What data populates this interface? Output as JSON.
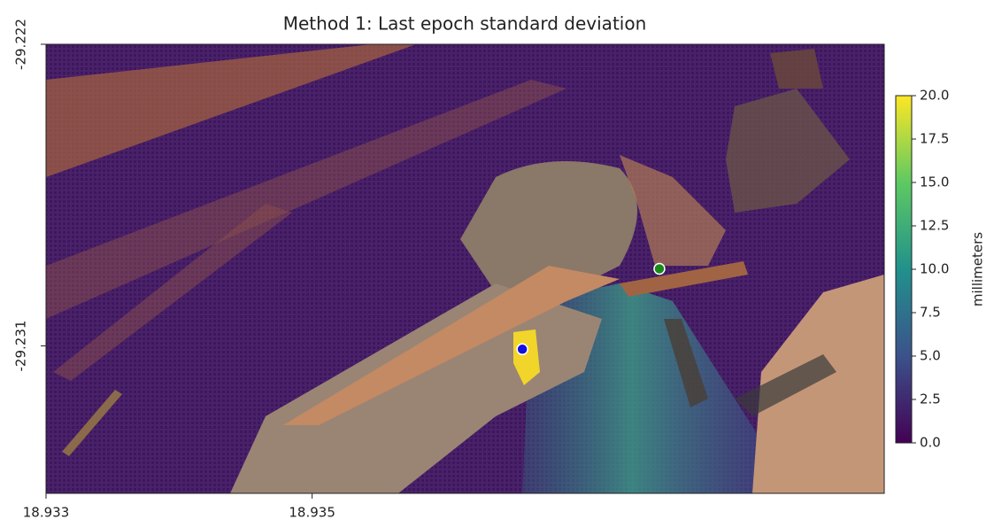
{
  "chart_data": {
    "type": "scatter",
    "title": "Method 1: Last epoch standard deviation",
    "xlim": [
      18.933,
      18.9393
    ],
    "xticks": [
      18.933,
      18.935
    ],
    "ylim": [
      -29.2354,
      -29.222
    ],
    "yticks": [
      -29.222,
      -29.231
    ],
    "series": [
      {
        "color": "#1a8a1a",
        "x": [
          18.93761
        ],
        "y": [
          -29.2287
        ]
      },
      {
        "color": "#1010e0",
        "x": [
          18.93658
        ],
        "y": [
          -29.2311
        ]
      }
    ],
    "colorbar": {
      "label": "millimeters",
      "lim": [
        0,
        20
      ],
      "colors": [
        "#440154",
        "#3b528b",
        "#21918c",
        "#5ec962",
        "#fde725"
      ],
      "ticks": [
        {
          "value": 0,
          "label": "0.0"
        },
        2.5,
        {
          "value": 5,
          "label": "5.0"
        },
        7.5,
        {
          "value": 10,
          "label": "10.0"
        },
        12.5,
        {
          "value": 15,
          "label": "15.0"
        },
        17.5,
        {
          "value": 20,
          "label": "20.0"
        }
      ]
    }
  }
}
